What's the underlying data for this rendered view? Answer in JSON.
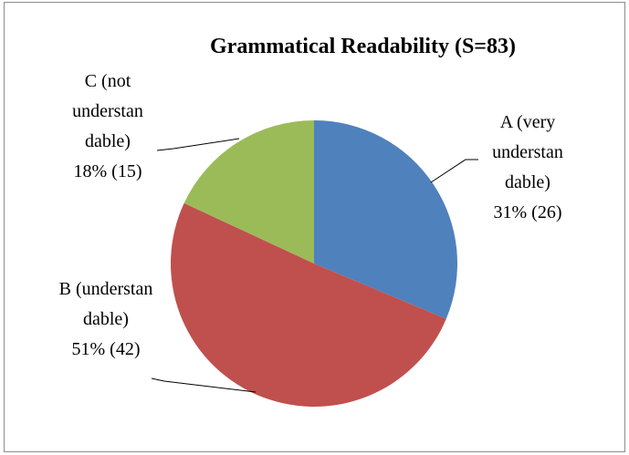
{
  "chart_data": {
    "type": "pie",
    "title": "Grammatical Readability (S=83)",
    "categories": [
      "A (very understan dable)",
      "B (understan dable)",
      "C (not understan dable)"
    ],
    "values": [
      26,
      42,
      15
    ],
    "value_labels": [
      "31% (26)",
      "51% (42)",
      "18% (15)"
    ],
    "colors": [
      "#4f81bd",
      "#c0504d",
      "#9bbb59"
    ]
  }
}
